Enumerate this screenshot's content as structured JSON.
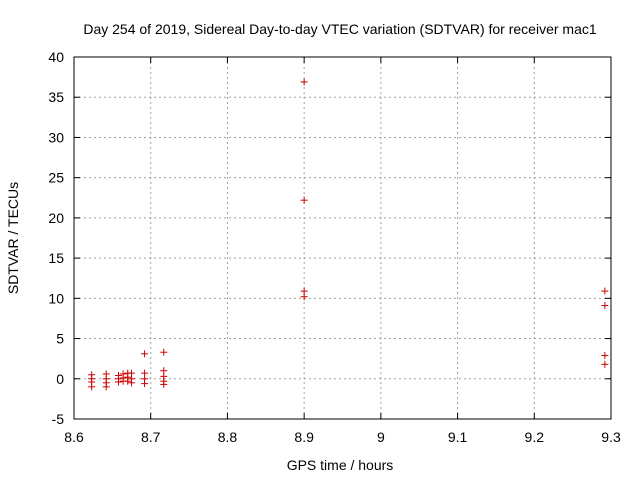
{
  "chart_data": {
    "type": "scatter",
    "title": "Day 254 of 2019, Sidereal Day-to-day VTEC variation (SDTVAR) for receiver mac1",
    "xlabel": "GPS time / hours",
    "ylabel": "SDTVAR / TECUs",
    "xlim": [
      8.6,
      9.3
    ],
    "ylim": [
      -5,
      40
    ],
    "grid": true,
    "x_ticks": [
      8.6,
      8.7,
      8.8,
      8.9,
      9.0,
      9.1,
      9.2,
      9.3
    ],
    "x_tick_labels": [
      "8.6",
      "8.7",
      "8.8",
      "8.9",
      "9",
      "9.1",
      "9.2",
      "9.3"
    ],
    "y_ticks": [
      -5,
      0,
      5,
      10,
      15,
      20,
      25,
      30,
      35,
      40
    ],
    "y_tick_labels": [
      "-5",
      "0",
      "5",
      "10",
      "15",
      "20",
      "25",
      "30",
      "35",
      "40"
    ],
    "marker": "+",
    "marker_color": "#cc0000",
    "series": [
      {
        "name": "SDTVAR",
        "points": [
          [
            8.623,
            0.5
          ],
          [
            8.623,
            0.0
          ],
          [
            8.623,
            -0.4
          ],
          [
            8.623,
            -1.0
          ],
          [
            8.642,
            0.6
          ],
          [
            8.642,
            0.0
          ],
          [
            8.642,
            -0.5
          ],
          [
            8.642,
            -1.0
          ],
          [
            8.658,
            0.4
          ],
          [
            8.658,
            0.0
          ],
          [
            8.658,
            -0.4
          ],
          [
            8.664,
            0.6
          ],
          [
            8.664,
            0.1
          ],
          [
            8.664,
            -0.3
          ],
          [
            8.67,
            0.7
          ],
          [
            8.67,
            0.2
          ],
          [
            8.67,
            -0.3
          ],
          [
            8.675,
            0.7
          ],
          [
            8.675,
            0.0
          ],
          [
            8.675,
            -0.5
          ],
          [
            8.692,
            3.1
          ],
          [
            8.692,
            0.7
          ],
          [
            8.692,
            0.0
          ],
          [
            8.692,
            -0.6
          ],
          [
            8.717,
            3.3
          ],
          [
            8.717,
            1.0
          ],
          [
            8.717,
            0.3
          ],
          [
            8.717,
            -0.3
          ],
          [
            8.717,
            -0.7
          ],
          [
            8.9,
            36.9
          ],
          [
            8.9,
            22.2
          ],
          [
            8.9,
            10.9
          ],
          [
            8.9,
            10.2
          ],
          [
            9.292,
            10.9
          ],
          [
            9.292,
            9.1
          ],
          [
            9.292,
            2.9
          ],
          [
            9.292,
            1.8
          ]
        ]
      }
    ]
  }
}
